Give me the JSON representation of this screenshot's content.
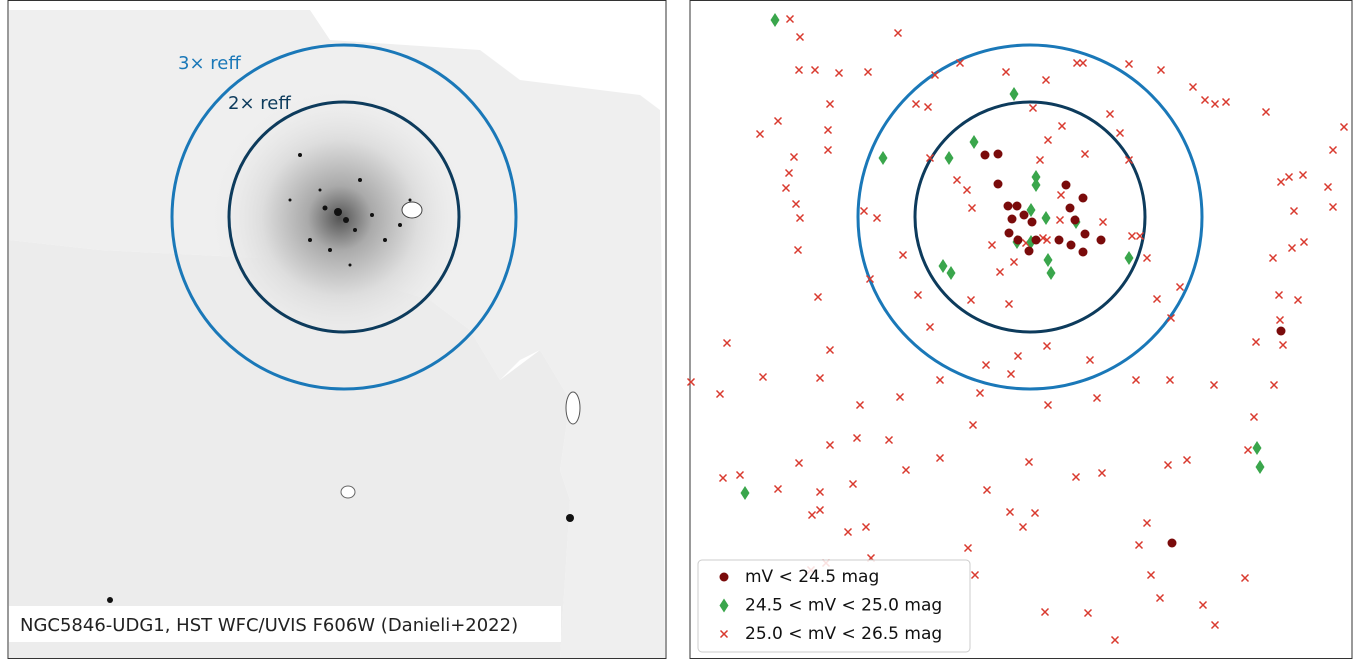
{
  "chart_data": [
    {
      "type": "image",
      "caption": "NGC5846-UDG1, HST WFC/UVIS F606W (Danieli+2022)",
      "annotations": [
        "3× reff",
        "2× reff"
      ]
    },
    {
      "type": "scatter",
      "xlim": [
        690,
        1352
      ],
      "ylim": [
        659,
        0
      ],
      "series": [
        {
          "name": "mV < 24.5 mag",
          "color": "#7a0b0b",
          "marker": "circle",
          "x": [
            985,
            998,
            998,
            1008,
            1017,
            1066,
            1083,
            1012,
            1024,
            1032,
            1070,
            1075,
            1009,
            1018,
            1036,
            1029,
            1059,
            1071,
            1085,
            1083,
            1101,
            1281,
            1172
          ],
          "values": [
            155,
            154,
            184,
            206,
            206,
            185,
            198,
            219,
            215,
            222,
            208,
            220,
            233,
            240,
            240,
            251,
            240,
            245,
            234,
            252,
            240,
            331,
            543
          ]
        },
        {
          "name": "24.5 < mV < 25.0 mag",
          "color": "#3aa64c",
          "marker": "diamond",
          "x": [
            775,
            1014,
            883,
            974,
            949,
            1036,
            1036,
            1031,
            1046,
            1076,
            1017,
            1031,
            1048,
            1051,
            1129,
            943,
            951,
            1257,
            1260,
            745
          ],
          "values": [
            20,
            94,
            158,
            142,
            158,
            177,
            185,
            210,
            218,
            222,
            242,
            242,
            260,
            273,
            258,
            266,
            273,
            448,
            467,
            493
          ]
        },
        {
          "name": "25.0 < mV < 26.5 mag",
          "color": "#d93a2f",
          "marker": "cross",
          "x": [
            790,
            800,
            898,
            799,
            815,
            839,
            868,
            935,
            960,
            1006,
            1046,
            1077,
            1083,
            1129,
            1161,
            1193,
            1205,
            1215,
            1226,
            1266,
            1344,
            1333,
            1303,
            1289,
            1281,
            1328,
            1333,
            1294,
            1304,
            1292,
            1273,
            1279,
            1298,
            1280,
            1256,
            1283,
            1274,
            1254,
            1248,
            1214,
            1170,
            1168,
            1187,
            1147,
            1139,
            1151,
            1160,
            1203,
            1215,
            1245,
            1045,
            1088,
            1115,
            975,
            968,
            1023,
            1035,
            1010,
            987,
            1029,
            1076,
            1102,
            1048,
            1011,
            986,
            973,
            940,
            906,
            889,
            857,
            853,
            830,
            820,
            799,
            778,
            740,
            723,
            812,
            820,
            811,
            826,
            871,
            848,
            866,
            720,
            691,
            763,
            727,
            820,
            830,
            860,
            900,
            940,
            980,
            930,
            1018,
            1047,
            1090,
            1136,
            1097,
            1157,
            1171,
            1180,
            1147,
            1129,
            1120,
            1110,
            1132,
            1140,
            1103,
            1061,
            1060,
            1043,
            1026,
            1014,
            1000,
            992,
            967,
            972,
            930,
            928,
            916,
            903,
            877,
            864,
            870,
            818,
            800,
            794,
            786,
            789,
            828,
            828,
            830,
            778,
            760,
            798,
            796,
            957,
            1033,
            1062,
            1048,
            1085,
            1040,
            1047,
            1009,
            971,
            918
          ],
          "values": [
            19,
            37,
            33,
            70,
            70,
            73,
            72,
            75,
            63,
            72,
            80,
            63,
            63,
            64,
            70,
            87,
            100,
            104,
            102,
            112,
            127,
            150,
            175,
            177,
            182,
            187,
            207,
            211,
            242,
            248,
            258,
            295,
            300,
            320,
            342,
            345,
            385,
            417,
            450,
            385,
            380,
            465,
            460,
            523,
            545,
            575,
            598,
            605,
            625,
            578,
            612,
            613,
            640,
            575,
            548,
            527,
            513,
            512,
            490,
            462,
            477,
            473,
            405,
            374,
            365,
            425,
            458,
            470,
            440,
            438,
            484,
            445,
            492,
            463,
            489,
            475,
            478,
            515,
            510,
            570,
            563,
            558,
            532,
            527,
            394,
            382,
            377,
            343,
            378,
            350,
            405,
            397,
            380,
            393,
            327,
            356,
            346,
            360,
            380,
            398,
            299,
            318,
            287,
            258,
            160,
            133,
            114,
            236,
            236,
            222,
            195,
            220,
            238,
            243,
            262,
            272,
            245,
            190,
            208,
            158,
            107,
            104,
            255,
            218,
            211,
            279,
            297,
            218,
            157,
            188,
            173,
            130,
            150,
            104,
            121,
            134,
            250,
            204,
            180,
            108,
            126,
            140,
            154,
            160,
            240,
            304,
            300,
            295
          ]
        }
      ]
    }
  ]
}
